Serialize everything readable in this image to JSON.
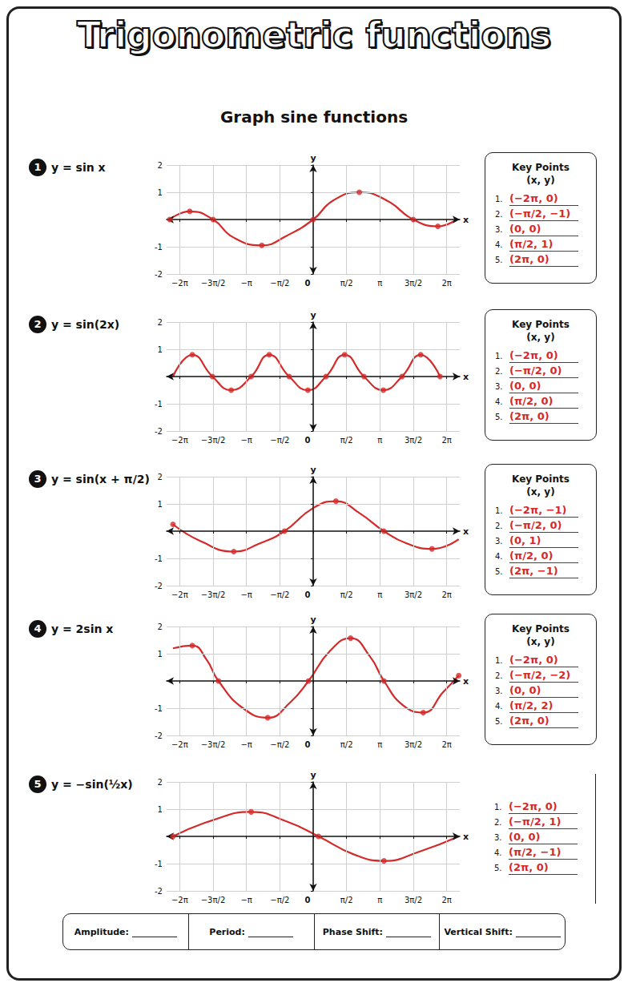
{
  "header": {
    "title": "Trigonometric functions",
    "subtitle": "Graph sine functions"
  },
  "chart_data": [
    {
      "type": "line",
      "number": 1,
      "title": "y = sin x",
      "x_label": "x",
      "y_label": "y",
      "grid": true,
      "xlim": [
        -6.9,
        6.9
      ],
      "xticks": [
        {
          "value": -6.2832,
          "label": "−2π"
        },
        {
          "value": -4.7124,
          "label": "−3π/2"
        },
        {
          "value": -3.1416,
          "label": "−π"
        },
        {
          "value": -1.5708,
          "label": "−π/2"
        },
        0,
        {
          "value": 1.5708,
          "label": "π/2"
        },
        {
          "value": 3.1416,
          "label": "π"
        },
        {
          "value": 4.7124,
          "label": "3π/2"
        },
        {
          "value": 6.2832,
          "label": "2π"
        }
      ],
      "ylim": [
        -2,
        2
      ],
      "yticks": [
        -2,
        -1,
        1,
        2
      ],
      "series": [
        {
          "type": "line",
          "color": "#d42a2a",
          "line_style": "solid",
          "x": [
            -6.75,
            -5.81,
            -4.71,
            -3.77,
            -2.42,
            -1.26,
            0,
            0.94,
            2.17,
            3.46,
            4.71,
            5.87,
            6.75
          ],
          "values": [
            0,
            0.3,
            0,
            -0.65,
            -0.95,
            -0.6,
            0,
            0.7,
            1.0,
            0.7,
            0,
            -0.25,
            0
          ]
        },
        {
          "type": "scatter",
          "color": "#d42a2a",
          "marker": "circle",
          "x": [
            -6.75,
            -5.81,
            -4.71,
            -2.42,
            0,
            2.17,
            4.71,
            5.87
          ],
          "values": [
            0,
            0.3,
            0,
            -0.95,
            0,
            1.0,
            0,
            -0.25
          ]
        }
      ]
    },
    {
      "type": "line",
      "number": 2,
      "title": "y = sin(2x)",
      "x_label": "x",
      "y_label": "y",
      "grid": true,
      "xlim": [
        -6.9,
        6.9
      ],
      "xticks": [
        {
          "value": -6.2832,
          "label": "−2π"
        },
        {
          "value": -4.7124,
          "label": "−3π/2"
        },
        {
          "value": -3.1416,
          "label": "−π"
        },
        {
          "value": -1.5708,
          "label": "−π/2"
        },
        0,
        {
          "value": 1.5708,
          "label": "π/2"
        },
        {
          "value": 3.1416,
          "label": "π"
        },
        {
          "value": 4.7124,
          "label": "3π/2"
        },
        {
          "value": 6.2832,
          "label": "2π"
        }
      ],
      "ylim": [
        -2,
        2
      ],
      "yticks": [
        -2,
        -1,
        1,
        2
      ],
      "series": [
        {
          "type": "line",
          "color": "#d42a2a",
          "line_style": "solid",
          "x": [
            -6.6,
            -5.69,
            -4.74,
            -3.86,
            -2.92,
            -2.07,
            -1.13,
            -0.25,
            0.6,
            1.48,
            2.39,
            3.3,
            4.18,
            5.06,
            5.97
          ],
          "values": [
            0,
            0.8,
            0,
            -0.5,
            0,
            0.8,
            0,
            -0.5,
            0,
            0.8,
            0,
            -0.5,
            0,
            0.8,
            0
          ]
        },
        {
          "type": "scatter",
          "color": "#d42a2a",
          "marker": "circle",
          "x": [
            -5.69,
            -4.74,
            -3.86,
            -2.92,
            -2.07,
            -1.13,
            -0.25,
            0.6,
            1.48,
            2.39,
            3.3,
            4.18,
            5.06,
            5.97
          ],
          "values": [
            0.8,
            0,
            -0.5,
            0,
            0.8,
            0,
            -0.5,
            0,
            0.8,
            0,
            -0.5,
            0,
            0.8,
            0
          ]
        }
      ]
    },
    {
      "type": "line",
      "number": 3,
      "title": "y = sin(x + π/2)",
      "x_label": "x",
      "y_label": "y",
      "grid": true,
      "xlim": [
        -6.9,
        6.9
      ],
      "xticks": [
        {
          "value": -6.2832,
          "label": "−2π"
        },
        {
          "value": -4.7124,
          "label": "−3π/2"
        },
        {
          "value": -3.1416,
          "label": "−π"
        },
        {
          "value": -1.5708,
          "label": "−π/2"
        },
        0,
        {
          "value": 1.5708,
          "label": "π/2"
        },
        {
          "value": 3.1416,
          "label": "π"
        },
        {
          "value": 4.7124,
          "label": "3π/2"
        },
        {
          "value": 6.2832,
          "label": "2π"
        }
      ],
      "ylim": [
        -2,
        2
      ],
      "yticks": [
        -2,
        -1,
        1,
        2
      ],
      "series": [
        {
          "type": "line",
          "color": "#d42a2a",
          "line_style": "solid",
          "x": [
            -6.6,
            -5.34,
            -3.74,
            -2.51,
            -1.35,
            0,
            1.07,
            2.2,
            3.33,
            4.4,
            5.59,
            6.85
          ],
          "values": [
            0.25,
            -0.35,
            -0.75,
            -0.45,
            0,
            0.85,
            1.1,
            0.65,
            0,
            -0.45,
            -0.65,
            -0.3
          ]
        },
        {
          "type": "scatter",
          "color": "#d42a2a",
          "marker": "circle",
          "x": [
            -6.6,
            -3.74,
            -1.35,
            1.07,
            3.33,
            5.59
          ],
          "values": [
            0.25,
            -0.75,
            0,
            1.1,
            0,
            -0.65
          ]
        }
      ]
    },
    {
      "type": "line",
      "number": 4,
      "title": "y = 2sin x",
      "x_label": "x",
      "y_label": "y",
      "grid": true,
      "xlim": [
        -6.9,
        6.9
      ],
      "xticks": [
        {
          "value": -6.2832,
          "label": "−2π"
        },
        {
          "value": -4.7124,
          "label": "−3π/2"
        },
        {
          "value": -3.1416,
          "label": "−π"
        },
        {
          "value": -1.5708,
          "label": "−π/2"
        },
        0,
        {
          "value": 1.5708,
          "label": "π/2"
        },
        {
          "value": 3.1416,
          "label": "π"
        },
        {
          "value": 4.7124,
          "label": "3π/2"
        },
        {
          "value": 6.2832,
          "label": "2π"
        }
      ],
      "ylim": [
        -2,
        2
      ],
      "yticks": [
        -2,
        -1,
        1,
        2
      ],
      "series": [
        {
          "type": "line",
          "color": "#d42a2a",
          "line_style": "solid",
          "x": [
            -6.6,
            -5.69,
            -5.03,
            -4.46,
            -3.3,
            -2.14,
            -1.1,
            -0.22,
            0.79,
            1.76,
            2.67,
            3.33,
            4.24,
            5.18,
            6.13,
            6.85
          ],
          "values": [
            1.2,
            1.3,
            0.8,
            0,
            -1.0,
            -1.35,
            -0.8,
            0,
            1.1,
            1.57,
            0.9,
            0,
            -0.9,
            -1.16,
            -0.4,
            0.2
          ]
        },
        {
          "type": "scatter",
          "color": "#d42a2a",
          "marker": "circle",
          "x": [
            -5.69,
            -4.46,
            -2.14,
            -0.22,
            1.76,
            3.33,
            5.18,
            6.85
          ],
          "values": [
            1.3,
            0,
            -1.35,
            0,
            1.57,
            0,
            -1.16,
            0.2
          ]
        }
      ]
    },
    {
      "type": "line",
      "number": 5,
      "title": "y = −sin(½x)",
      "x_label": "x",
      "y_label": "y",
      "grid": true,
      "xlim": [
        -6.9,
        6.9
      ],
      "xticks": [
        {
          "value": -6.2832,
          "label": "−2π"
        },
        {
          "value": -4.7124,
          "label": "−3π/2"
        },
        {
          "value": -3.1416,
          "label": "−π"
        },
        {
          "value": -1.5708,
          "label": "−π/2"
        },
        0,
        {
          "value": 1.5708,
          "label": "π/2"
        },
        {
          "value": 3.1416,
          "label": "π"
        },
        {
          "value": 4.7124,
          "label": "3π/2"
        },
        {
          "value": 6.2832,
          "label": "2π"
        }
      ],
      "ylim": [
        -2,
        2
      ],
      "yticks": [
        -2,
        -1,
        1,
        2
      ],
      "series": [
        {
          "type": "line",
          "color": "#d42a2a",
          "line_style": "solid",
          "x": [
            -6.6,
            -4.71,
            -2.92,
            -1.26,
            0.25,
            1.88,
            3.33,
            5.03,
            6.85
          ],
          "values": [
            0,
            0.6,
            0.9,
            0.55,
            0,
            -0.65,
            -0.9,
            -0.55,
            0
          ]
        },
        {
          "type": "scatter",
          "color": "#d42a2a",
          "marker": "circle",
          "x": [
            -6.6,
            -2.92,
            0.25,
            3.33
          ],
          "values": [
            0,
            0.9,
            0,
            -0.9
          ]
        }
      ]
    }
  ],
  "key_points": [
    {
      "title": "Key Points",
      "subtitle": "(x, y)",
      "items": [
        [
          "1.",
          "(−2π, 0)"
        ],
        [
          "2.",
          "(−π/2, −1)"
        ],
        [
          "3.",
          "(0, 0)"
        ],
        [
          "4.",
          "(π/2, 1)"
        ],
        [
          "5.",
          "(2π, 0)"
        ]
      ]
    },
    {
      "title": "Key Points",
      "subtitle": "(x, y)",
      "items": [
        [
          "1.",
          "(−2π, 0)"
        ],
        [
          "2.",
          "(−π/2, 0)"
        ],
        [
          "3.",
          "(0, 0)"
        ],
        [
          "4.",
          "(π/2, 0)"
        ],
        [
          "5.",
          "(2π, 0)"
        ]
      ]
    },
    {
      "title": "Key Points",
      "subtitle": "(x, y)",
      "items": [
        [
          "1.",
          "(−2π, −1)"
        ],
        [
          "2.",
          "(−π/2, 0)"
        ],
        [
          "3.",
          "(0, 1)"
        ],
        [
          "4.",
          "(π/2, 0)"
        ],
        [
          "5.",
          "(2π, −1)"
        ]
      ]
    },
    {
      "title": "Key Points",
      "subtitle": "(x, y)",
      "items": [
        [
          "1.",
          "(−2π, 0)"
        ],
        [
          "2.",
          "(−π/2, −2)"
        ],
        [
          "3.",
          "(0, 0)"
        ],
        [
          "4.",
          "(π/2, 2)"
        ],
        [
          "5.",
          "(2π, 0)"
        ]
      ]
    },
    {
      "items": [
        [
          "1.",
          "(−2π, 0)"
        ],
        [
          "2.",
          "(−π/2, 1)"
        ],
        [
          "3.",
          "(0, 0)"
        ],
        [
          "4.",
          "(π/2, −1)"
        ],
        [
          "5.",
          "(2π, 0)"
        ]
      ]
    }
  ],
  "footer": [
    "Amplitude:",
    "Period:",
    "Phase Shift:",
    "Vertical Shift:"
  ]
}
